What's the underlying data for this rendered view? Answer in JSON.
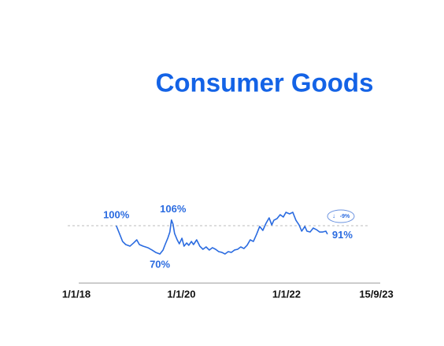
{
  "chart_data": {
    "type": "line",
    "title": "Consumer Goods",
    "x": [
      2018.76,
      2018.82,
      2018.88,
      2018.94,
      2019.02,
      2019.09,
      2019.15,
      2019.2,
      2019.27,
      2019.36,
      2019.44,
      2019.51,
      2019.59,
      2019.65,
      2019.69,
      2019.74,
      2019.78,
      2019.81,
      2019.84,
      2019.87,
      2019.92,
      2019.96,
      2020.01,
      2020.05,
      2020.1,
      2020.14,
      2020.19,
      2020.23,
      2020.29,
      2020.35,
      2020.41,
      2020.47,
      2020.53,
      2020.59,
      2020.65,
      2020.71,
      2020.77,
      2020.83,
      2020.89,
      2020.95,
      2021.01,
      2021.07,
      2021.13,
      2021.19,
      2021.25,
      2021.31,
      2021.37,
      2021.43,
      2021.49,
      2021.55,
      2021.61,
      2021.67,
      2021.72,
      2021.76,
      2021.82,
      2021.88,
      2021.94,
      2021.99,
      2022.06,
      2022.12,
      2022.18,
      2022.24,
      2022.29,
      2022.35,
      2022.39,
      2022.45,
      2022.51,
      2022.57,
      2022.63,
      2022.69,
      2022.75,
      2022.78
    ],
    "series": [
      {
        "color": "#2a6be0",
        "values": [
          100,
          91.7,
          83.3,
          80,
          78.3,
          81.7,
          85,
          80,
          78.3,
          76.7,
          74.2,
          71.7,
          70,
          74.2,
          80,
          86.7,
          93.3,
          106,
          101.7,
          91.7,
          85,
          80.8,
          86.7,
          78.3,
          81.7,
          79.2,
          83.3,
          80,
          85,
          78.3,
          75,
          77.5,
          74.2,
          76.7,
          75,
          72.5,
          71.7,
          70,
          72.5,
          71.7,
          74.2,
          75,
          77.5,
          75.8,
          79.2,
          85,
          83.3,
          90.8,
          99.2,
          95,
          102.5,
          108.3,
          100.8,
          105.8,
          107.5,
          111.7,
          109.2,
          114.2,
          112.5,
          114.2,
          105.8,
          100.8,
          94.2,
          99.2,
          94.2,
          93.3,
          97.5,
          95.8,
          93.3,
          93.3,
          94.2,
          91
        ]
      }
    ],
    "xlim": [
      2018,
      2023.71
    ],
    "xticks": [
      {
        "value": 2018,
        "label": "1/1/18"
      },
      {
        "value": 2020,
        "label": "1/1/20"
      },
      {
        "value": 2022,
        "label": "1/1/22"
      },
      {
        "value": 2023.71,
        "label": "15/9/23"
      }
    ],
    "ylim": [
      60,
      120
    ],
    "reference_line": 100,
    "annotations": [
      {
        "x": 2018.76,
        "y": 100,
        "label": "100%",
        "position": "above-left"
      },
      {
        "x": 2019.81,
        "y": 106,
        "label": "106%",
        "position": "above"
      },
      {
        "x": 2019.59,
        "y": 70,
        "label": "70%",
        "position": "below"
      },
      {
        "x": 2022.78,
        "y": 91,
        "label": "91%",
        "position": "right"
      }
    ],
    "change_label": "-9%"
  }
}
